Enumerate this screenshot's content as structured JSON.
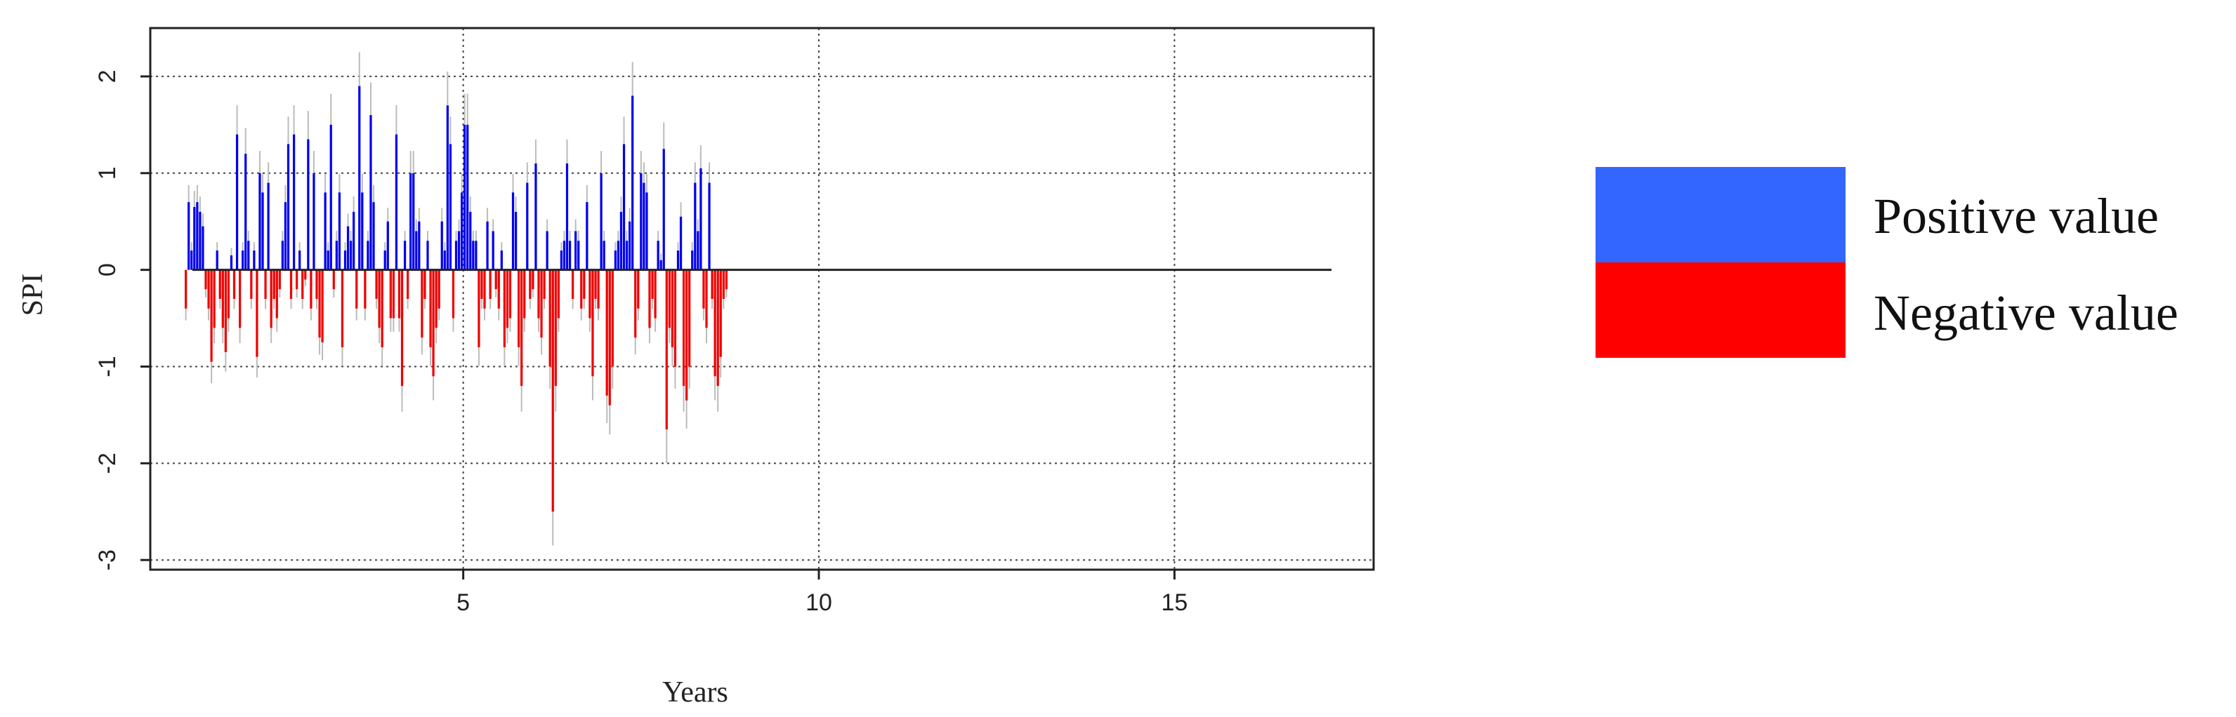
{
  "chart_data": {
    "type": "bar",
    "title": "",
    "xlabel": "Years",
    "ylabel": "SPI",
    "xlim": [
      0.6,
      17.8
    ],
    "ylim": [
      -3.1,
      2.5
    ],
    "xticks": [
      5,
      10,
      15
    ],
    "yticks": [
      2,
      1,
      0,
      -1,
      -2,
      -3
    ],
    "grid": true,
    "grid_style": "dotted",
    "legend_position": "right",
    "legend": [
      {
        "label": "Positive value",
        "color": "#3366FF"
      },
      {
        "label": "Negative value",
        "color": "#FF0000"
      }
    ],
    "bar_colors": {
      "positive": "#0000EE",
      "negative": "#EE0000",
      "whisker": "#BBBBBB"
    },
    "x_start": 1.1,
    "x_step": 0.04,
    "values": [
      -0.4,
      0.7,
      0.2,
      0.65,
      0.7,
      0.6,
      0.45,
      -0.2,
      -0.4,
      -0.95,
      -0.6,
      0.2,
      -0.3,
      -0.6,
      -0.85,
      -0.5,
      0.15,
      -0.3,
      1.4,
      -0.6,
      0.2,
      1.2,
      0.3,
      -0.3,
      0.2,
      -0.9,
      1.0,
      0.8,
      -0.3,
      0.9,
      -0.6,
      -0.3,
      -0.5,
      -0.2,
      0.3,
      0.7,
      1.3,
      -0.3,
      1.4,
      -0.2,
      0.2,
      -0.3,
      -0.1,
      1.35,
      -0.4,
      1.0,
      -0.3,
      -0.7,
      -0.75,
      0.8,
      0.2,
      1.5,
      -0.2,
      0.3,
      0.8,
      -0.8,
      0.2,
      0.45,
      0.3,
      0.6,
      -0.4,
      1.9,
      0.8,
      -0.4,
      0.3,
      1.6,
      0.7,
      -0.3,
      -0.6,
      -0.8,
      0.2,
      0.5,
      -0.5,
      -0.5,
      1.4,
      -0.5,
      -1.2,
      0.3,
      -0.3,
      1.0,
      1.0,
      0.4,
      0.5,
      -0.7,
      -0.3,
      0.3,
      -0.8,
      -1.1,
      -0.6,
      -0.4,
      0.5,
      0.2,
      1.7,
      1.3,
      -0.5,
      0.3,
      0.4,
      0.8,
      1.5,
      1.5,
      0.6,
      0.3,
      0.3,
      -0.8,
      -0.3,
      -0.4,
      0.5,
      -0.3,
      0.4,
      -0.2,
      -0.4,
      0.2,
      -0.8,
      -0.6,
      -0.5,
      0.8,
      0.6,
      -0.8,
      -1.2,
      -0.5,
      0.9,
      -0.3,
      -0.2,
      1.1,
      -0.5,
      -0.7,
      -0.3,
      0.4,
      -1.0,
      -2.5,
      -1.2,
      -0.5,
      0.2,
      0.3,
      1.1,
      0.3,
      -0.3,
      0.4,
      0.3,
      -0.4,
      -0.3,
      0.7,
      -0.5,
      -1.1,
      -0.3,
      -0.4,
      1.0,
      0.3,
      -1.3,
      -1.4,
      -1.0,
      0.2,
      0.3,
      0.6,
      1.3,
      0.3,
      0.5,
      1.8,
      -0.7,
      -0.4,
      1.0,
      0.9,
      0.8,
      -0.6,
      -0.3,
      -0.5,
      0.3,
      0.1,
      1.25,
      -1.65,
      -0.6,
      -0.8,
      -1.0,
      0.2,
      0.55,
      -1.2,
      -1.35,
      -1.0,
      0.2,
      0.9,
      0.4,
      1.05,
      -0.4,
      -0.6,
      0.9,
      -0.3,
      -1.1,
      -1.2,
      -0.9,
      -0.3,
      -0.2
    ]
  },
  "legend_swatches": {
    "positive": "#3366FF",
    "negative": "#FF0000"
  }
}
